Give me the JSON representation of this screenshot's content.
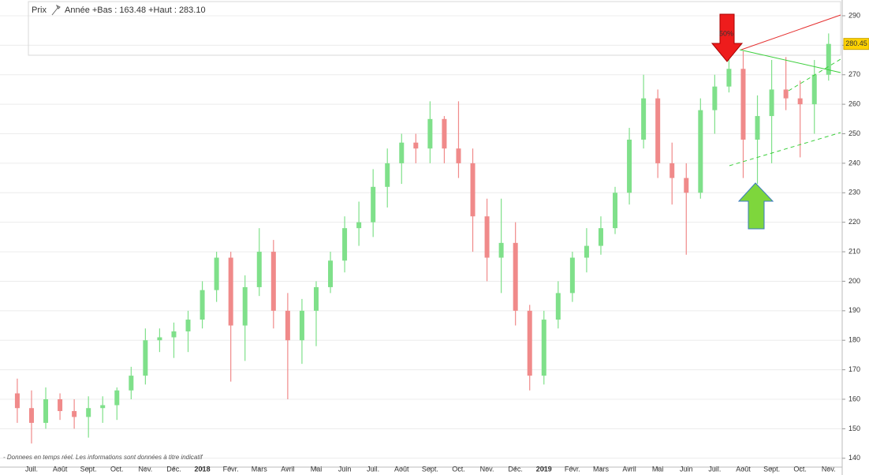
{
  "chart_data": {
    "type": "candlestick",
    "title": "Prix",
    "subtitle": "Année +Bas : 163.48 +Haut : 283.10",
    "note": "- Donnees en temps réel. Les informations sont données à titre indicatif",
    "annotations": [
      "50%"
    ],
    "categories": [
      null,
      "Juil.",
      null,
      "Août",
      null,
      "Sept.",
      null,
      "Oct.",
      null,
      "Nov.",
      null,
      "Déc.",
      null,
      "2018",
      null,
      "Févr.",
      null,
      "Mars",
      null,
      "Avril",
      null,
      "Mai",
      null,
      "Juin",
      null,
      "Juil.",
      null,
      "Août",
      null,
      "Sept.",
      null,
      "Oct.",
      null,
      "Nov.",
      null,
      "Déc.",
      null,
      "2019",
      null,
      "Févr.",
      null,
      "Mars",
      null,
      "Avril",
      null,
      "Mai",
      null,
      "Juin",
      null,
      "Juil.",
      null,
      "Août",
      null,
      "Sept.",
      null,
      "Oct.",
      null,
      "Nov."
    ],
    "open": [
      162,
      157,
      152,
      160,
      156,
      154,
      157,
      158,
      163,
      168,
      180,
      181,
      183,
      187,
      197,
      208,
      185,
      198,
      210,
      190,
      180,
      190,
      198,
      207,
      218,
      220,
      232,
      240,
      247,
      245,
      255,
      245,
      240,
      222,
      208,
      213,
      190,
      168,
      187,
      196,
      208,
      212,
      218,
      230,
      248,
      262,
      240,
      235,
      230,
      258,
      266,
      272,
      248,
      256,
      265,
      262,
      260,
      270
    ],
    "high": [
      167,
      163,
      164,
      162,
      160,
      161,
      161,
      164,
      171,
      184,
      184,
      186,
      190,
      200,
      210,
      210,
      202,
      218,
      214,
      196,
      194,
      200,
      210,
      222,
      227,
      238,
      245,
      250,
      250,
      261,
      256,
      261,
      245,
      228,
      228,
      220,
      192,
      190,
      200,
      210,
      218,
      222,
      232,
      252,
      270,
      265,
      247,
      240,
      262,
      270,
      279,
      278,
      263,
      275,
      276,
      268,
      275,
      284
    ],
    "low": [
      152,
      145,
      150,
      153,
      150,
      147,
      152,
      153,
      160,
      165,
      176,
      174,
      176,
      184,
      193,
      166,
      173,
      195,
      184,
      160,
      172,
      178,
      196,
      203,
      212,
      215,
      225,
      233,
      240,
      240,
      240,
      235,
      210,
      200,
      196,
      185,
      163,
      165,
      184,
      193,
      203,
      209,
      216,
      226,
      245,
      235,
      226,
      209,
      228,
      250,
      264,
      235,
      233,
      240,
      258,
      242,
      250,
      268
    ],
    "close": [
      157,
      152,
      160,
      156,
      154,
      157,
      158,
      163,
      168,
      180,
      181,
      183,
      187,
      197,
      208,
      185,
      198,
      210,
      190,
      180,
      190,
      198,
      207,
      218,
      220,
      232,
      240,
      247,
      245,
      255,
      245,
      240,
      222,
      208,
      213,
      190,
      168,
      187,
      196,
      208,
      212,
      218,
      230,
      248,
      262,
      240,
      235,
      230,
      258,
      266,
      272,
      248,
      256,
      265,
      262,
      260,
      270,
      280.45
    ],
    "up_color": "#7fe08a",
    "down_color": "#f08a8a",
    "ylim": [
      137,
      294
    ],
    "yticks": [
      140,
      150,
      160,
      170,
      180,
      190,
      200,
      210,
      220,
      230,
      240,
      250,
      260,
      270,
      280,
      290
    ],
    "grid": true
  }
}
